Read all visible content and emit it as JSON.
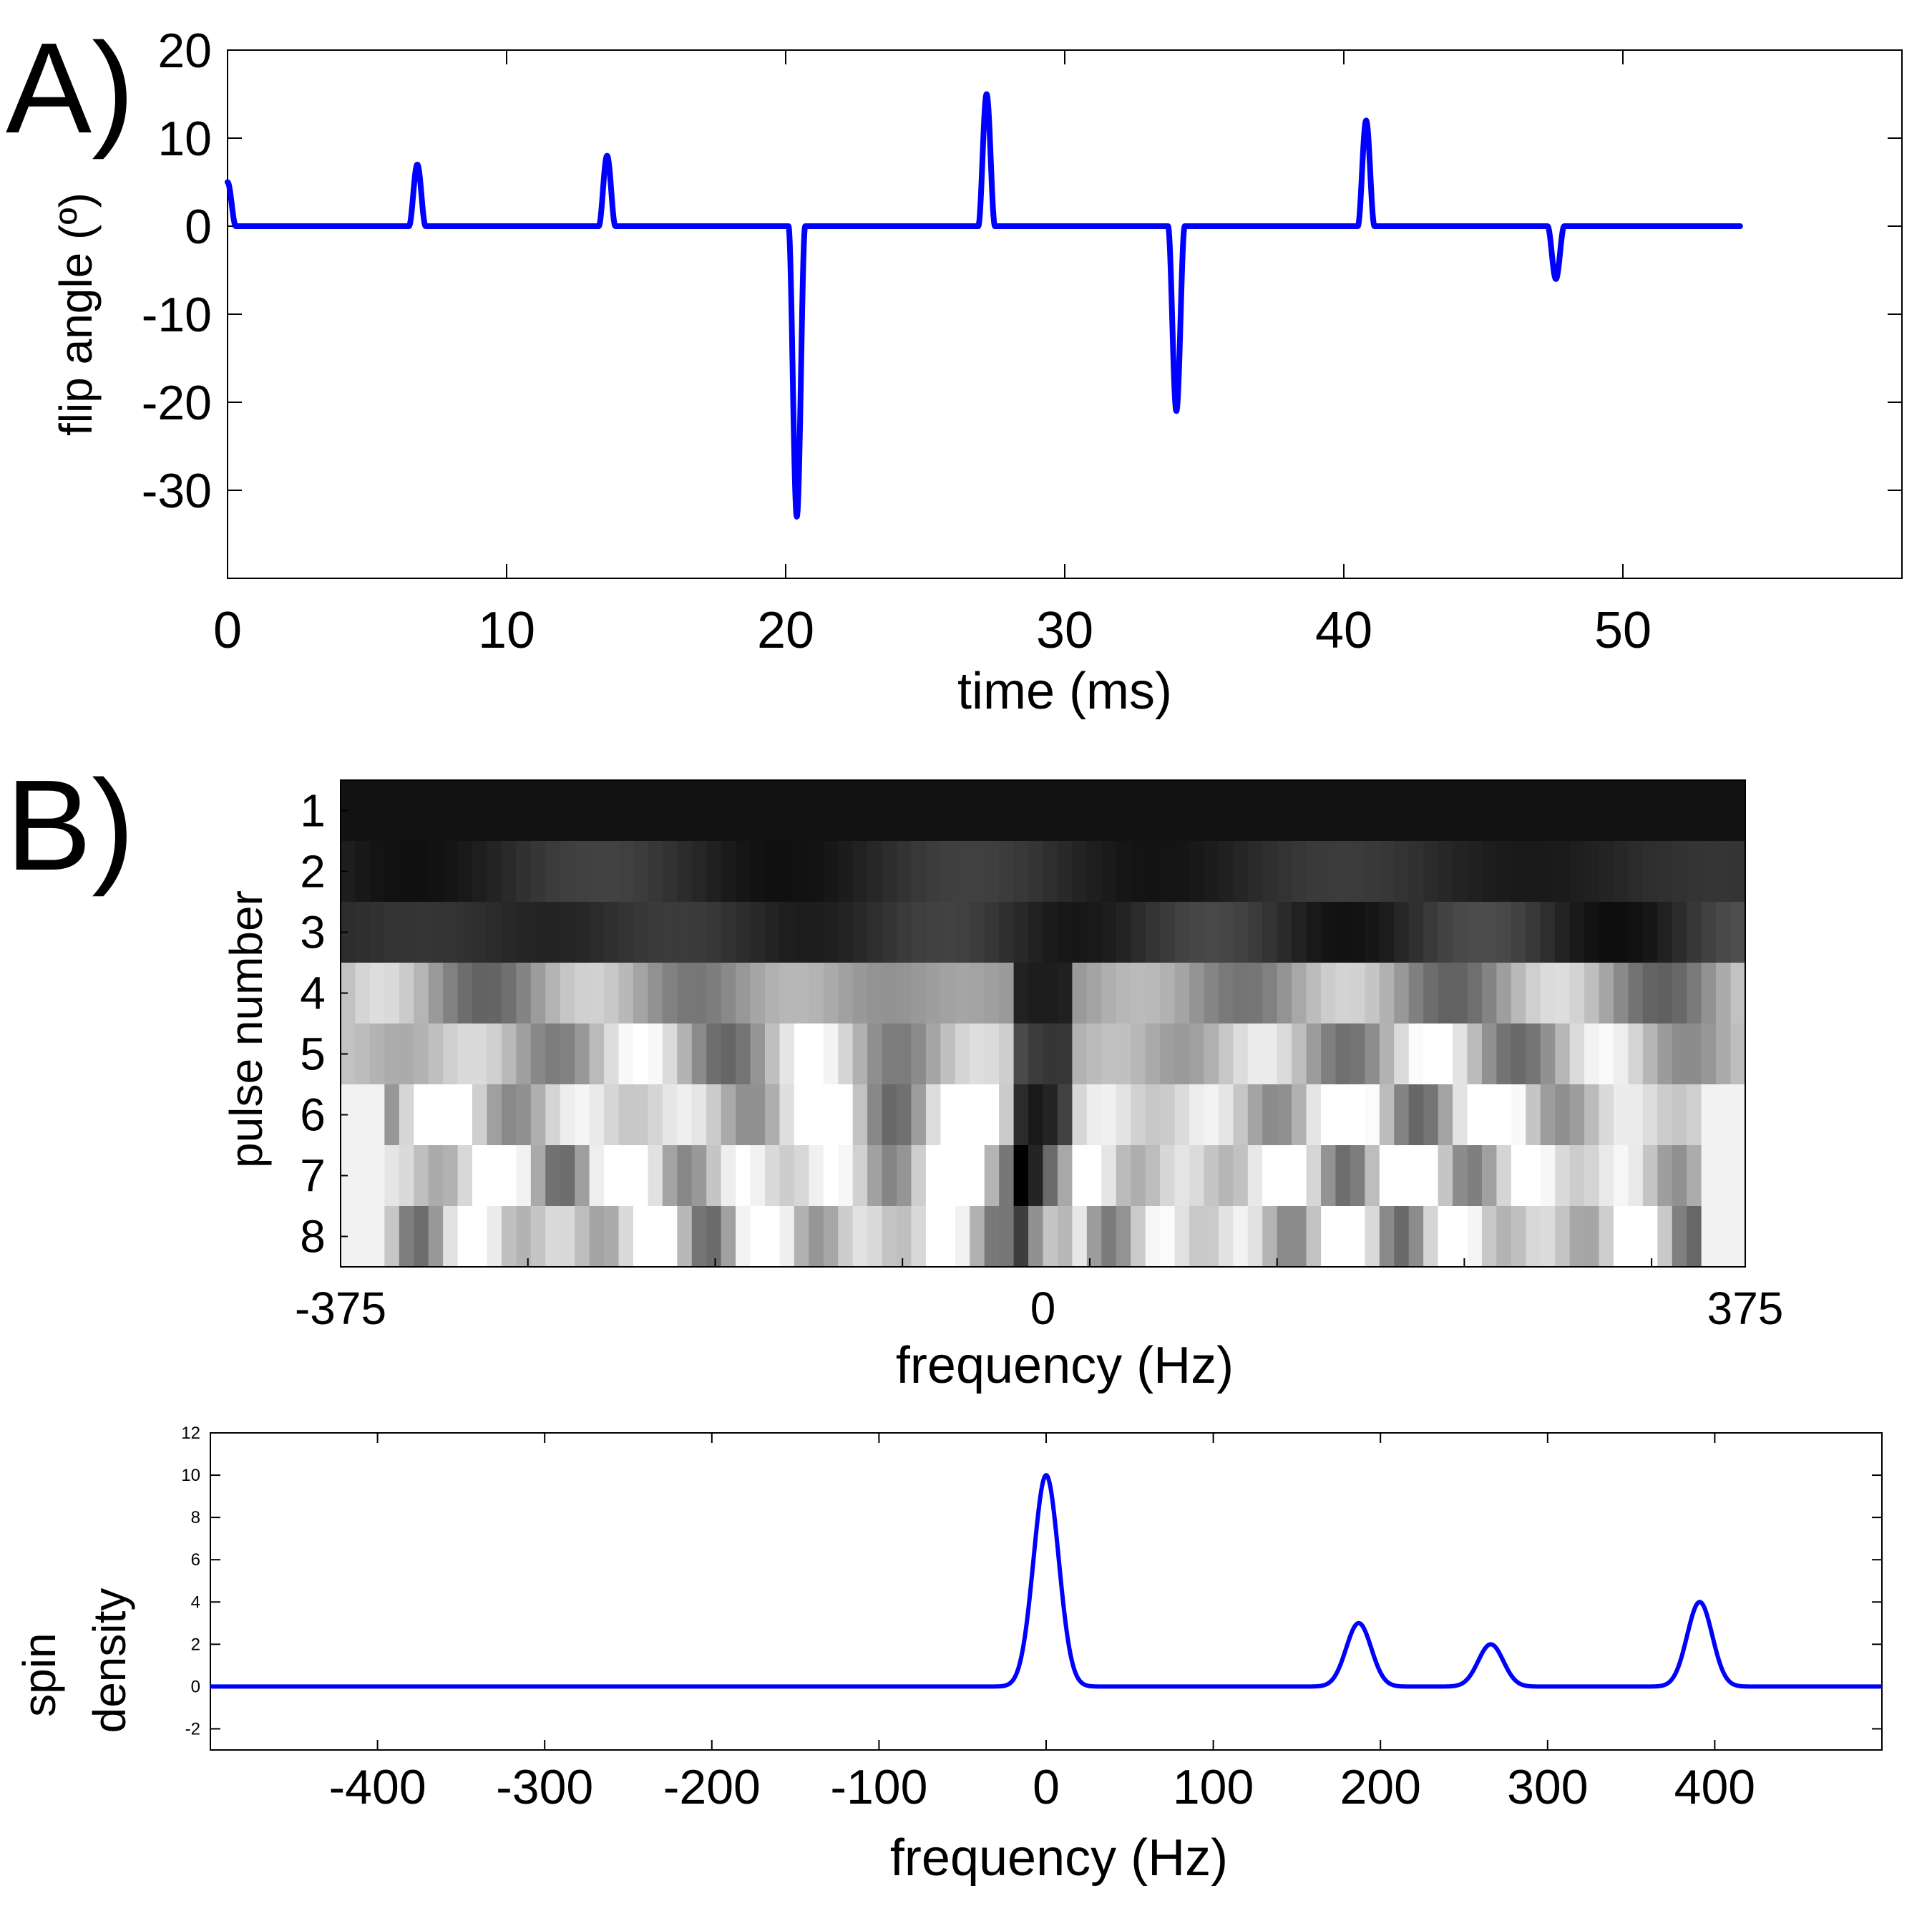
{
  "colors": {
    "line": "#0000ff",
    "axis": "#000000",
    "background": "#ffffff"
  },
  "chart_data": [
    {
      "id": "A",
      "panel_label": "A)",
      "type": "line",
      "xlabel": "time (ms)",
      "ylabel": "flip angle (º)",
      "xlim": [
        0,
        60
      ],
      "ylim": [
        -40,
        20
      ],
      "xticks": [
        0,
        10,
        20,
        30,
        40,
        50
      ],
      "yticks": [
        -30,
        -20,
        -10,
        0,
        10,
        20
      ],
      "pulse_width_ms": 0.6,
      "time_end_ms": 54.2,
      "pulses": [
        {
          "t": 0.0,
          "amp": 5
        },
        {
          "t": 6.8,
          "amp": 7
        },
        {
          "t": 13.6,
          "amp": 8
        },
        {
          "t": 20.4,
          "amp": -33
        },
        {
          "t": 27.2,
          "amp": 15
        },
        {
          "t": 34.0,
          "amp": -21
        },
        {
          "t": 40.8,
          "amp": 12
        },
        {
          "t": 47.6,
          "amp": -6
        }
      ]
    },
    {
      "id": "B",
      "panel_label": "B)",
      "type": "heatmap",
      "xlabel": "frequency (Hz)",
      "ylabel": "pulse number",
      "xlim": [
        -375,
        375
      ],
      "xticks": [
        -375,
        0,
        375
      ],
      "rows": [
        "1",
        "2",
        "3",
        "4",
        "5",
        "6",
        "7",
        "8"
      ],
      "colormap": "gray",
      "n_columns": 96
    },
    {
      "id": "C",
      "type": "line",
      "xlabel": "frequency (Hz)",
      "ylabel": [
        "spin",
        "density"
      ],
      "xlim": [
        -500,
        500
      ],
      "ylim": [
        -3,
        12
      ],
      "xticks": [
        -400,
        -300,
        -200,
        -100,
        0,
        100,
        200,
        300,
        400
      ],
      "yticks": [
        -2,
        0,
        2,
        4,
        6,
        8,
        10,
        12
      ],
      "peak_sigma_hz": 7.5,
      "peaks": [
        {
          "f": 0,
          "amp": 10
        },
        {
          "f": 187,
          "amp": 3
        },
        {
          "f": 266,
          "amp": 2
        },
        {
          "f": 391,
          "amp": 4
        }
      ]
    }
  ]
}
